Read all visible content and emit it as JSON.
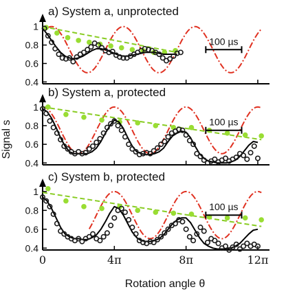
{
  "colors": {
    "data_points": "#1a1a1a",
    "fit_line": "#000000",
    "ideal_signal": "#e03020",
    "decay_points": "#99dd33",
    "decay_line": "#88cc22"
  },
  "axis_labels": {
    "x": "Rotation angle θ",
    "y": "Signal s"
  },
  "scale_bar_label": "100 µs",
  "chart_data": [
    {
      "type": "scatter",
      "title": "a) System a, unprotected",
      "xlabel": "Rotation angle θ",
      "ylabel": "Signal s",
      "xlim": [
        0,
        12.5
      ],
      "ylim": [
        0.38,
        1.05
      ],
      "x_unit": "π",
      "xticks": [
        0,
        4,
        8,
        12
      ],
      "xtick_labels": [
        "0",
        "4π",
        "8π",
        "12π"
      ],
      "yticks": [
        0.4,
        0.6,
        0.8,
        1
      ],
      "ytick_labels": [
        "0.4",
        "0.6",
        "0.8",
        "1"
      ],
      "scale_bar": {
        "label": "100 µs",
        "x_start": 9.1,
        "x_end": 11.1,
        "y": 0.75
      },
      "data_points": {
        "x": [
          0.1,
          0.3,
          0.5,
          0.7,
          0.9,
          1.1,
          1.3,
          1.5,
          1.7,
          1.9,
          2.1,
          2.3,
          2.5,
          2.7,
          2.9,
          3.1,
          3.3,
          3.5,
          3.7,
          3.9,
          4.1,
          4.3,
          4.5,
          4.7,
          4.9,
          5.1,
          5.3,
          5.5,
          5.7,
          5.9,
          6.1,
          6.3,
          6.5,
          6.7,
          6.9,
          7.1,
          7.3,
          7.5,
          7.7
        ],
        "y": [
          0.98,
          0.9,
          0.83,
          0.76,
          0.7,
          0.66,
          0.65,
          0.66,
          0.62,
          0.67,
          0.7,
          0.72,
          0.75,
          0.78,
          0.82,
          0.8,
          0.77,
          0.74,
          0.72,
          0.73,
          0.69,
          0.67,
          0.66,
          0.66,
          0.68,
          0.7,
          0.72,
          0.74,
          0.76,
          0.75,
          0.74,
          0.72,
          0.7,
          0.66,
          0.63,
          0.65,
          0.68,
          0.71,
          0.72
        ]
      },
      "fit_line": {
        "x": [
          0,
          0.25,
          0.5,
          0.75,
          1,
          1.25,
          1.5,
          1.75,
          2,
          2.25,
          2.5,
          2.75,
          3,
          3.25,
          3.5,
          3.75,
          4,
          4.25,
          4.5,
          4.75,
          5,
          5.25,
          5.5,
          5.75,
          6,
          6.25,
          6.5,
          6.75,
          7,
          7.25,
          7.5
        ],
        "y": [
          0.98,
          0.92,
          0.85,
          0.78,
          0.72,
          0.68,
          0.66,
          0.65,
          0.66,
          0.68,
          0.71,
          0.74,
          0.76,
          0.76,
          0.75,
          0.73,
          0.71,
          0.69,
          0.68,
          0.68,
          0.69,
          0.7,
          0.71,
          0.72,
          0.72,
          0.72,
          0.71,
          0.7,
          0.7,
          0.7,
          0.7
        ]
      },
      "ideal_signal": {
        "period": 4,
        "phase_offset": 0.5,
        "min": 0.5,
        "max": 1.0,
        "x_range": [
          0.3,
          12.2
        ]
      },
      "decay_points": {
        "x": [
          0.2,
          0.8,
          1.4,
          2.0,
          2.6,
          3.2,
          3.8,
          4.4,
          5.0,
          5.6,
          6.2,
          6.8,
          7.4
        ],
        "y": [
          0.99,
          0.93,
          0.88,
          0.85,
          0.83,
          0.81,
          0.79,
          0.77,
          0.75,
          0.74,
          0.72,
          0.72,
          0.74
        ]
      },
      "decay_line": {
        "x": [
          0,
          7.5
        ],
        "y": [
          1.0,
          0.72
        ]
      }
    },
    {
      "type": "scatter",
      "title": "b) System a, protected",
      "xlabel": "Rotation angle θ",
      "ylabel": "Signal s",
      "xlim": [
        0,
        12.5
      ],
      "ylim": [
        0.38,
        1.05
      ],
      "x_unit": "π",
      "xticks": [
        0,
        4,
        8,
        12
      ],
      "xtick_labels": [
        "0",
        "4π",
        "8π",
        "12π"
      ],
      "yticks": [
        0.4,
        0.6,
        0.8,
        1
      ],
      "ytick_labels": [
        "0.4",
        "0.6",
        "0.8",
        "1"
      ],
      "scale_bar": {
        "label": "100 µs",
        "x_start": 9.1,
        "x_end": 11.1,
        "y": 0.75
      },
      "data_points": {
        "x": [
          0,
          0.2,
          0.4,
          0.6,
          0.8,
          1.0,
          1.2,
          1.4,
          1.6,
          1.8,
          2.0,
          2.2,
          2.4,
          2.6,
          2.8,
          3.0,
          3.2,
          3.4,
          3.6,
          3.8,
          4.0,
          4.2,
          4.4,
          4.6,
          4.8,
          5.0,
          5.2,
          5.4,
          5.6,
          5.8,
          6.0,
          6.2,
          6.4,
          6.6,
          6.8,
          7.0,
          7.2,
          7.4,
          7.6,
          7.8,
          8.0,
          8.2,
          8.4,
          8.6,
          8.8,
          9.0,
          9.2,
          9.4,
          9.6,
          9.8,
          10.0,
          10.2,
          10.4,
          10.6,
          10.8,
          11.0,
          11.2,
          11.4,
          11.6,
          11.8,
          12.0
        ],
        "y": [
          0.98,
          0.93,
          0.85,
          0.78,
          0.72,
          0.65,
          0.58,
          0.55,
          0.52,
          0.5,
          0.52,
          0.5,
          0.51,
          0.55,
          0.58,
          0.62,
          0.66,
          0.72,
          0.78,
          0.82,
          0.85,
          0.8,
          0.75,
          0.68,
          0.6,
          0.55,
          0.52,
          0.49,
          0.5,
          0.51,
          0.5,
          0.53,
          0.56,
          0.6,
          0.63,
          0.68,
          0.72,
          0.74,
          0.76,
          0.75,
          0.7,
          0.64,
          0.6,
          0.5,
          0.47,
          0.43,
          0.4,
          0.42,
          0.44,
          0.41,
          0.43,
          0.45,
          0.42,
          0.44,
          0.46,
          0.5,
          0.48,
          0.44,
          0.51,
          0.58,
          0.45
        ]
      },
      "fit_line": {
        "x": [
          0,
          0.25,
          0.5,
          0.75,
          1,
          1.25,
          1.5,
          1.75,
          2,
          2.25,
          2.5,
          2.75,
          3,
          3.25,
          3.5,
          3.75,
          4,
          4.25,
          4.5,
          4.75,
          5,
          5.25,
          5.5,
          5.75,
          6,
          6.25,
          6.5,
          6.75,
          7,
          7.25,
          7.5,
          7.75,
          8,
          8.25,
          8.5,
          8.75,
          9,
          9.25,
          9.5,
          9.75,
          10,
          10.25,
          10.5,
          10.75,
          11,
          11.25,
          11.5,
          11.75,
          12
        ],
        "y": [
          0.98,
          0.95,
          0.88,
          0.78,
          0.67,
          0.58,
          0.52,
          0.5,
          0.5,
          0.5,
          0.5,
          0.52,
          0.56,
          0.63,
          0.72,
          0.8,
          0.86,
          0.84,
          0.77,
          0.67,
          0.58,
          0.52,
          0.5,
          0.49,
          0.49,
          0.5,
          0.52,
          0.56,
          0.63,
          0.69,
          0.72,
          0.74,
          0.73,
          0.67,
          0.58,
          0.5,
          0.45,
          0.42,
          0.41,
          0.4,
          0.4,
          0.4,
          0.41,
          0.43,
          0.47,
          0.53,
          0.59,
          0.63,
          0.62
        ]
      },
      "ideal_signal": {
        "period": 4,
        "phase_offset": 0,
        "min": 0.5,
        "max": 1.0,
        "x_range": [
          0,
          12.2
        ]
      },
      "decay_points": {
        "x": [
          0.3,
          1.3,
          2.3,
          3.3,
          4.3,
          5.3,
          6.3,
          7.3,
          8.3,
          9.3,
          10.3,
          11.3,
          12.2
        ],
        "y": [
          1.0,
          0.92,
          0.89,
          0.86,
          0.84,
          0.83,
          0.8,
          0.78,
          0.78,
          0.75,
          0.72,
          0.7,
          0.69
        ]
      },
      "decay_line": {
        "x": [
          0,
          12.2
        ],
        "y": [
          1.0,
          0.65
        ]
      }
    },
    {
      "type": "scatter",
      "title": "c) System b, protected",
      "xlabel": "Rotation angle θ",
      "ylabel": "Signal s",
      "xlim": [
        0,
        12.5
      ],
      "ylim": [
        0.38,
        1.05
      ],
      "x_unit": "π",
      "xticks": [
        0,
        4,
        8,
        12
      ],
      "xtick_labels": [
        "0",
        "4π",
        "8π",
        "12π"
      ],
      "yticks": [
        0.4,
        0.6,
        0.8,
        1
      ],
      "ytick_labels": [
        "0.4",
        "0.6",
        "0.8",
        "1"
      ],
      "scale_bar": {
        "label": "100 µs",
        "x_start": 9.1,
        "x_end": 11.1,
        "y": 0.75
      },
      "data_points": {
        "x": [
          0,
          0.2,
          0.4,
          0.6,
          0.8,
          1.0,
          1.2,
          1.4,
          1.6,
          1.8,
          2.0,
          2.2,
          2.4,
          2.6,
          2.8,
          3.0,
          3.2,
          3.4,
          3.6,
          3.8,
          4.0,
          4.2,
          4.4,
          4.6,
          4.8,
          5.0,
          5.2,
          5.4,
          5.6,
          5.8,
          6.0,
          6.2,
          6.4,
          6.6,
          6.8,
          7.0,
          7.2,
          7.4,
          7.6,
          7.8,
          8.0,
          8.2,
          8.4,
          8.6,
          8.8,
          9.0,
          9.2,
          9.4,
          9.6,
          9.8,
          10.0,
          10.2,
          10.4,
          10.6,
          10.8,
          11.0,
          11.2,
          11.4,
          11.6,
          11.8,
          12.0
        ],
        "y": [
          0.94,
          0.9,
          0.84,
          0.76,
          0.66,
          0.58,
          0.55,
          0.52,
          0.5,
          0.48,
          0.5,
          0.47,
          0.5,
          0.52,
          0.55,
          0.5,
          0.48,
          0.52,
          0.56,
          0.64,
          0.72,
          0.8,
          0.82,
          0.78,
          0.7,
          0.62,
          0.55,
          0.48,
          0.46,
          0.45,
          0.47,
          0.46,
          0.49,
          0.52,
          0.56,
          0.6,
          0.64,
          0.66,
          0.7,
          0.68,
          0.6,
          0.52,
          0.48,
          0.55,
          0.62,
          0.58,
          0.46,
          0.5,
          0.48,
          0.45,
          0.4,
          0.42,
          0.38,
          0.41,
          0.44,
          0.39,
          0.42,
          0.45,
          0.42,
          0.44,
          0.42
        ]
      },
      "fit_line": {
        "x": [
          0,
          0.25,
          0.5,
          0.75,
          1,
          1.25,
          1.5,
          1.75,
          2,
          2.25,
          2.5,
          2.75,
          3,
          3.25,
          3.5,
          3.75,
          4,
          4.25,
          4.5,
          4.75,
          5,
          5.25,
          5.5,
          5.75,
          6,
          6.25,
          6.5,
          6.75,
          7,
          7.25,
          7.5,
          7.75,
          8,
          8.25,
          8.5,
          8.75,
          9,
          9.25,
          9.5,
          9.75,
          10,
          10.25,
          10.5,
          10.75,
          11,
          11.25,
          11.5,
          11.75,
          12
        ],
        "y": [
          0.94,
          0.9,
          0.82,
          0.72,
          0.62,
          0.55,
          0.52,
          0.5,
          0.5,
          0.49,
          0.49,
          0.51,
          0.54,
          0.6,
          0.68,
          0.77,
          0.84,
          0.82,
          0.75,
          0.66,
          0.57,
          0.51,
          0.48,
          0.47,
          0.47,
          0.48,
          0.5,
          0.54,
          0.6,
          0.66,
          0.7,
          0.72,
          0.72,
          0.67,
          0.59,
          0.51,
          0.45,
          0.42,
          0.4,
          0.39,
          0.39,
          0.39,
          0.4,
          0.42,
          0.45,
          0.5,
          0.55,
          0.59,
          0.6
        ]
      },
      "ideal_signal": {
        "period": 4,
        "phase_offset": 0,
        "min": 0.5,
        "max": 1.0,
        "x_range": [
          2.6,
          12.2
        ]
      },
      "decay_points": {
        "x": [
          0.3,
          1.3,
          2.3,
          3.3,
          4.3,
          5.3,
          6.3,
          7.3,
          8.3,
          9.3,
          10.3,
          11.3,
          12.2
        ],
        "y": [
          1.03,
          0.9,
          0.84,
          0.82,
          0.84,
          0.8,
          0.78,
          0.77,
          0.76,
          0.73,
          0.72,
          0.72,
          0.7
        ]
      },
      "decay_line": {
        "x": [
          0,
          12.2
        ],
        "y": [
          0.99,
          0.63
        ]
      }
    }
  ]
}
